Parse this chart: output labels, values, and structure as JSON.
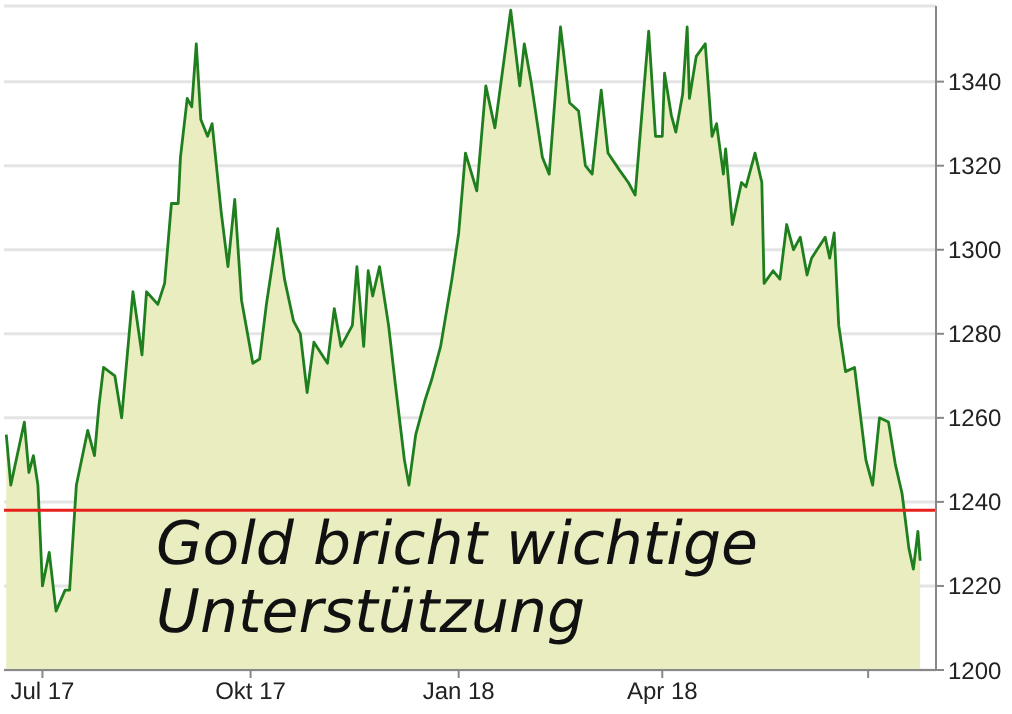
{
  "chart_data": {
    "type": "area",
    "annotations": [
      "Gold bricht wichtige Unterstützung"
    ],
    "x": [
      "2017-06-15",
      "2017-06-17",
      "2017-06-23",
      "2017-06-25",
      "2017-06-27",
      "2017-06-29",
      "2017-07-01",
      "2017-07-04",
      "2017-07-07",
      "2017-07-11",
      "2017-07-13",
      "2017-07-16",
      "2017-07-21",
      "2017-07-24",
      "2017-07-26",
      "2017-07-28",
      "2017-08-02",
      "2017-08-05",
      "2017-08-10",
      "2017-08-14",
      "2017-08-16",
      "2017-08-21",
      "2017-08-24",
      "2017-08-27",
      "2017-08-30",
      "2017-08-31",
      "2017-09-03",
      "2017-09-05",
      "2017-09-07",
      "2017-09-09",
      "2017-09-12",
      "2017-09-14",
      "2017-09-18",
      "2017-09-21",
      "2017-09-24",
      "2017-09-27",
      "2017-10-02",
      "2017-10-05",
      "2017-10-08",
      "2017-10-13",
      "2017-10-16",
      "2017-10-20",
      "2017-10-23",
      "2017-10-26",
      "2017-10-29",
      "2017-11-04",
      "2017-11-07",
      "2017-11-10",
      "2017-11-15",
      "2017-11-17",
      "2017-11-20",
      "2017-11-22",
      "2017-11-24",
      "2017-11-27",
      "2017-12-01",
      "2017-12-04",
      "2017-12-08",
      "2017-12-10",
      "2017-12-13",
      "2017-12-17",
      "2017-12-20",
      "2017-12-24",
      "2017-12-29",
      "2018-01-01",
      "2018-01-04",
      "2018-01-09",
      "2018-01-13",
      "2018-01-17",
      "2018-01-19",
      "2018-01-24",
      "2018-01-28",
      "2018-01-30",
      "2018-02-02",
      "2018-02-07",
      "2018-02-10",
      "2018-02-15",
      "2018-02-19",
      "2018-02-23",
      "2018-02-26",
      "2018-03-01",
      "2018-03-05",
      "2018-03-08",
      "2018-03-13",
      "2018-03-17",
      "2018-03-20",
      "2018-03-26",
      "2018-03-29",
      "2018-04-01",
      "2018-04-02",
      "2018-04-05",
      "2018-04-07",
      "2018-04-10",
      "2018-04-12",
      "2018-04-13",
      "2018-04-16",
      "2018-04-20",
      "2018-04-23",
      "2018-04-25",
      "2018-04-28",
      "2018-04-29",
      "2018-05-02",
      "2018-05-06",
      "2018-05-08",
      "2018-05-12",
      "2018-05-15",
      "2018-05-16",
      "2018-05-20",
      "2018-05-23",
      "2018-05-26",
      "2018-05-29",
      "2018-06-01",
      "2018-06-04",
      "2018-06-06",
      "2018-06-12",
      "2018-06-14",
      "2018-06-16",
      "2018-06-18",
      "2018-06-21",
      "2018-06-25",
      "2018-06-30",
      "2018-07-03",
      "2018-07-06",
      "2018-07-10",
      "2018-07-13",
      "2018-07-16",
      "2018-07-19",
      "2018-07-21",
      "2018-07-23",
      "2018-07-24"
    ],
    "series": [
      {
        "color": "#1f7f1f",
        "values": [
          1256,
          1244,
          1259,
          1247,
          1251,
          1244,
          1220,
          1228,
          1214,
          1219,
          1219,
          1244,
          1257,
          1251,
          1263,
          1272,
          1270,
          1260,
          1290,
          1275,
          1290,
          1287,
          1292,
          1311,
          1311,
          1322,
          1336,
          1334,
          1349,
          1331,
          1327,
          1330,
          1309,
          1296,
          1312,
          1288,
          1273,
          1274,
          1287,
          1305,
          1293,
          1283,
          1280,
          1266,
          1278,
          1273,
          1286,
          1277,
          1282,
          1296,
          1277,
          1295,
          1289,
          1296,
          1282,
          1268,
          1250,
          1244,
          1256,
          1264,
          1269,
          1277,
          1293,
          1304,
          1323,
          1314,
          1339,
          1329,
          1337,
          1357,
          1339,
          1349,
          1340,
          1322,
          1318,
          1353,
          1335,
          1333,
          1320,
          1318,
          1338,
          1323,
          1319,
          1316,
          1313,
          1352,
          1327,
          1327,
          1342,
          1332,
          1328,
          1337,
          1353,
          1336,
          1346,
          1349,
          1327,
          1330,
          1318,
          1324,
          1306,
          1316,
          1315,
          1323,
          1316,
          1292,
          1295,
          1293,
          1306,
          1300,
          1303,
          1294,
          1298,
          1303,
          1298,
          1304,
          1282,
          1271,
          1272,
          1250,
          1244,
          1260,
          1259,
          1249,
          1242,
          1229,
          1224,
          1233,
          1226
        ]
      }
    ],
    "xlim": [
      "2017-06-14",
      "2018-07-31"
    ],
    "xticks": [
      {
        "value": "2017-07-01",
        "label": "Jul 17"
      },
      {
        "value": "2017-10-01",
        "label": "Okt 17"
      },
      {
        "value": "2018-01-01",
        "label": "Jan 18"
      },
      {
        "value": "2018-04-01",
        "label": "Apr 18"
      },
      {
        "value": "2018-07-01",
        "label": null
      }
    ],
    "ylim": [
      1200,
      1358
    ],
    "yticks": [
      1200,
      1220,
      1240,
      1260,
      1280,
      1300,
      1320,
      1340
    ],
    "grid": "y",
    "ref_lines": [
      {
        "axis": "y",
        "value": 1238,
        "color": "#e8201c"
      }
    ]
  }
}
